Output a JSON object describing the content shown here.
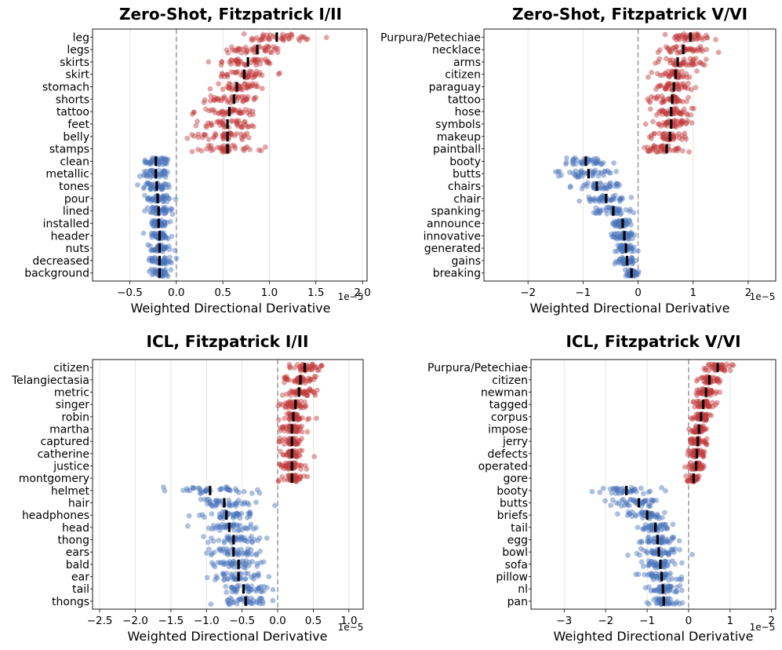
{
  "chart_data": [
    {
      "type": "scatter",
      "title": "Zero-Shot, Fitzpatrick I/II",
      "xlabel": "Weighted Directional Derivative",
      "x_multiplier": "1e−5",
      "xlim": [
        -0.9,
        2.05
      ],
      "xticks": [
        -0.5,
        0.0,
        0.5,
        1.0,
        1.5,
        2.0
      ],
      "xtick_labels": [
        "−0.5",
        "0.0",
        "0.5",
        "1.0",
        "1.5",
        "2.0"
      ],
      "categories": [
        "leg",
        "legs",
        "skirts",
        "skirt",
        "stomach",
        "shorts",
        "tattoo",
        "feet",
        "belly",
        "stamps",
        "clean",
        "metallic",
        "tones",
        "pour",
        "lined",
        "installed",
        "header",
        "nuts",
        "decreased",
        "background"
      ],
      "means": [
        1.08,
        0.87,
        0.77,
        0.73,
        0.65,
        0.62,
        0.57,
        0.55,
        0.55,
        0.55,
        -0.22,
        -0.22,
        -0.21,
        -0.2,
        -0.19,
        -0.19,
        -0.18,
        -0.18,
        -0.18,
        -0.18
      ],
      "spreads": [
        0.35,
        0.3,
        0.3,
        0.28,
        0.3,
        0.28,
        0.28,
        0.28,
        0.28,
        0.28,
        0.15,
        0.15,
        0.13,
        0.13,
        0.12,
        0.11,
        0.11,
        0.11,
        0.11,
        0.11
      ],
      "positive_count": 10
    },
    {
      "type": "scatter",
      "title": "Zero-Shot, Fitzpatrick V/VI",
      "xlabel": "Weighted Directional Derivative",
      "x_multiplier": "1e−5",
      "xlim": [
        -2.8,
        2.5
      ],
      "xticks": [
        -2,
        -1,
        0,
        1,
        2
      ],
      "xtick_labels": [
        "−2",
        "−1",
        "0",
        "1",
        "2"
      ],
      "categories": [
        "Purpura/Petechiae",
        "necklace",
        "arms",
        "citizen",
        "paraguay",
        "tattoo",
        "hose",
        "symbols",
        "makeup",
        "paintball",
        "booty",
        "butts",
        "chairs",
        "chair",
        "spanking",
        "announce",
        "innovative",
        "generated",
        "gains",
        "breaking"
      ],
      "means": [
        0.95,
        0.82,
        0.72,
        0.68,
        0.65,
        0.62,
        0.6,
        0.6,
        0.58,
        0.52,
        -0.95,
        -0.9,
        -0.75,
        -0.58,
        -0.45,
        -0.28,
        -0.25,
        -0.22,
        -0.2,
        -0.12
      ],
      "spreads": [
        0.38,
        0.4,
        0.38,
        0.33,
        0.33,
        0.33,
        0.33,
        0.33,
        0.33,
        0.3,
        0.5,
        0.55,
        0.45,
        0.4,
        0.35,
        0.2,
        0.2,
        0.2,
        0.18,
        0.1
      ],
      "positive_count": 10
    },
    {
      "type": "scatter",
      "title": "ICL, Fitzpatrick I/II",
      "xlabel": "Weighted Directional Derivative",
      "x_multiplier": "1e−5",
      "xlim": [
        -2.6,
        1.2
      ],
      "xticks": [
        -2.5,
        -2.0,
        -1.5,
        -1.0,
        -0.5,
        0.0,
        0.5,
        1.0
      ],
      "xtick_labels": [
        "−2.5",
        "−2.0",
        "−1.5",
        "−1.0",
        "−0.5",
        "0.0",
        "0.5",
        "1.0"
      ],
      "categories": [
        "citizen",
        "Telangiectasia",
        "metric",
        "singer",
        "robin",
        "martha",
        "captured",
        "catherine",
        "justice",
        "montgomery",
        "helmet",
        "hair",
        "headphones",
        "head",
        "thong",
        "ears",
        "bald",
        "ear",
        "tail",
        "thongs"
      ],
      "means": [
        0.38,
        0.32,
        0.3,
        0.25,
        0.22,
        0.2,
        0.2,
        0.2,
        0.2,
        0.2,
        -0.95,
        -0.75,
        -0.72,
        -0.68,
        -0.62,
        -0.62,
        -0.55,
        -0.55,
        -0.48,
        -0.45
      ],
      "spreads": [
        0.22,
        0.2,
        0.2,
        0.18,
        0.15,
        0.15,
        0.15,
        0.15,
        0.15,
        0.15,
        0.55,
        0.45,
        0.4,
        0.4,
        0.35,
        0.35,
        0.3,
        0.35,
        0.3,
        0.3
      ],
      "positive_count": 10
    },
    {
      "type": "scatter",
      "title": "ICL, Fitzpatrick V/VI",
      "xlabel": "Weighted Directional Derivative",
      "x_multiplier": "1e−5",
      "xlim": [
        -3.8,
        2.1
      ],
      "xticks": [
        -3,
        -2,
        -1,
        0,
        1,
        2
      ],
      "xtick_labels": [
        "−3",
        "−2",
        "−1",
        "0",
        "1",
        "2"
      ],
      "categories": [
        "Purpura/Petechiae",
        "citizen",
        "newman",
        "tagged",
        "corpus",
        "impose",
        "jerry",
        "defects",
        "operated",
        "gore",
        "booty",
        "butts",
        "briefs",
        "tail",
        "egg",
        "bowl",
        "sofa",
        "pillow",
        "nl",
        "pan"
      ],
      "means": [
        0.7,
        0.5,
        0.42,
        0.35,
        0.3,
        0.25,
        0.22,
        0.2,
        0.18,
        0.12,
        -1.5,
        -1.2,
        -1.0,
        -0.8,
        -0.75,
        -0.72,
        -0.68,
        -0.65,
        -0.62,
        -0.6
      ],
      "spreads": [
        0.35,
        0.28,
        0.25,
        0.22,
        0.2,
        0.2,
        0.2,
        0.2,
        0.18,
        0.15,
        0.65,
        0.55,
        0.5,
        0.45,
        0.45,
        0.45,
        0.4,
        0.4,
        0.4,
        0.4
      ],
      "positive_count": 10
    }
  ],
  "colors": {
    "positive": "#c0393b",
    "negative": "#4a74bb",
    "mean_bar": "#000000",
    "zero_line": "#999999",
    "grid": "#e5e5e5"
  }
}
